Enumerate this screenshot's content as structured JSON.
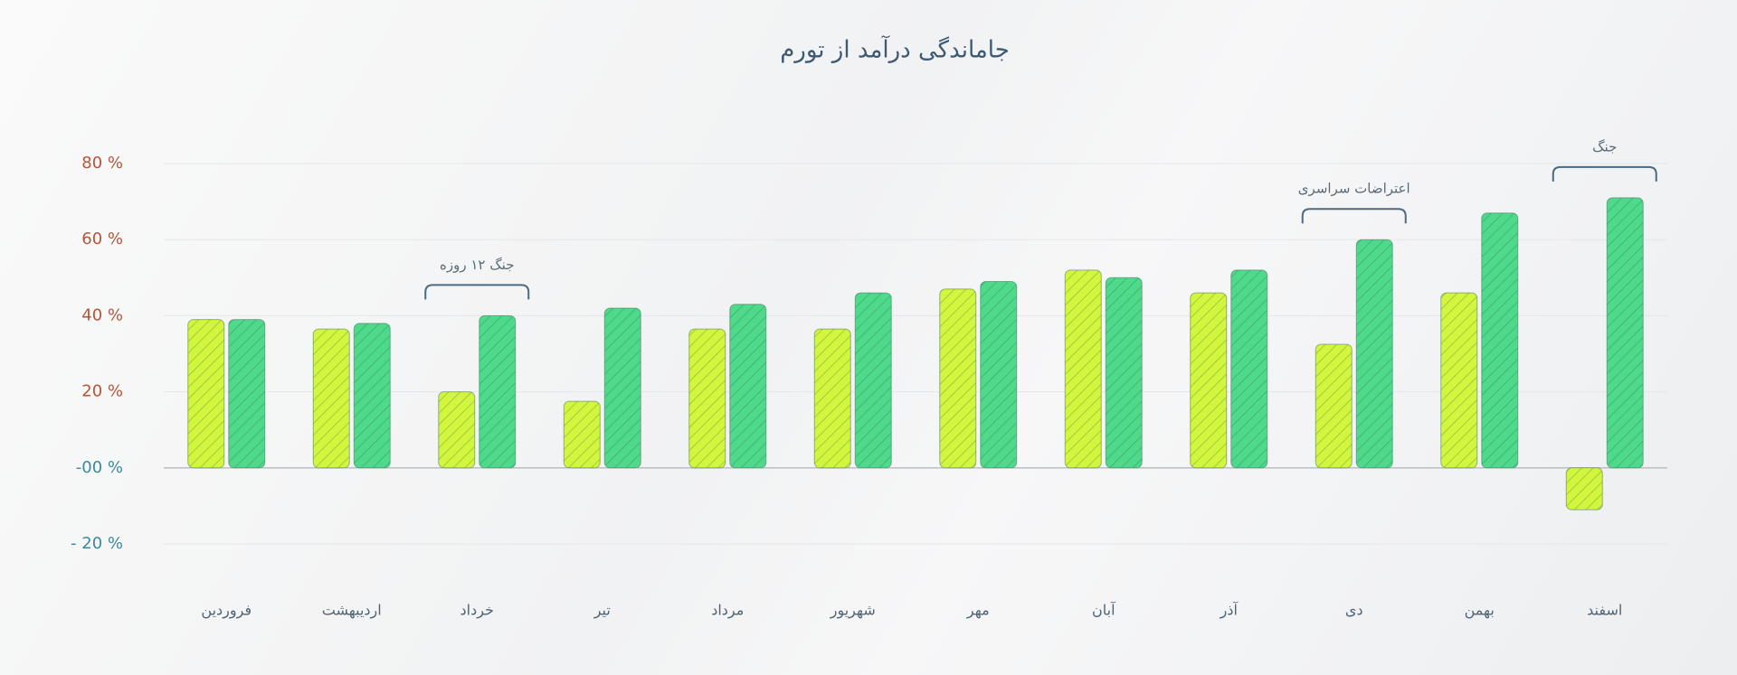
{
  "chart_data": {
    "type": "bar",
    "title": "جاماندگی درآمد از تورم",
    "categories": [
      "فروردین",
      "اردیبهشت",
      "خرداد",
      "تیر",
      "مرداد",
      "شهریور",
      "مهر",
      "آبان",
      "آذر",
      "دی",
      "بهمن",
      "اسفند"
    ],
    "series": [
      {
        "color": "#d2f53e",
        "values": [
          39,
          36.5,
          20,
          17.5,
          36.5,
          36.5,
          47,
          52,
          46,
          32.5,
          46,
          -11
        ]
      },
      {
        "color": "#4ed98b",
        "values": [
          39,
          38,
          40,
          42,
          43,
          46,
          49,
          50,
          52,
          60,
          67,
          71
        ]
      }
    ],
    "ylim": [
      -20,
      80
    ],
    "yticks": [
      {
        "value": -20,
        "label": "- 20 %"
      },
      {
        "value": 0,
        "label": "-00 %"
      },
      {
        "value": 20,
        "label": "20 %"
      },
      {
        "value": 40,
        "label": "40 %"
      },
      {
        "value": 60,
        "label": "60 %"
      },
      {
        "value": 80,
        "label": "80 %"
      }
    ],
    "grid": true,
    "annotations": [
      {
        "text": "جنگ ۱۲ روزه",
        "category": "خرداد"
      },
      {
        "text": "اعتراضات سراسری",
        "category": "دی"
      },
      {
        "text": "جنگ",
        "category": "اسفند"
      }
    ]
  }
}
